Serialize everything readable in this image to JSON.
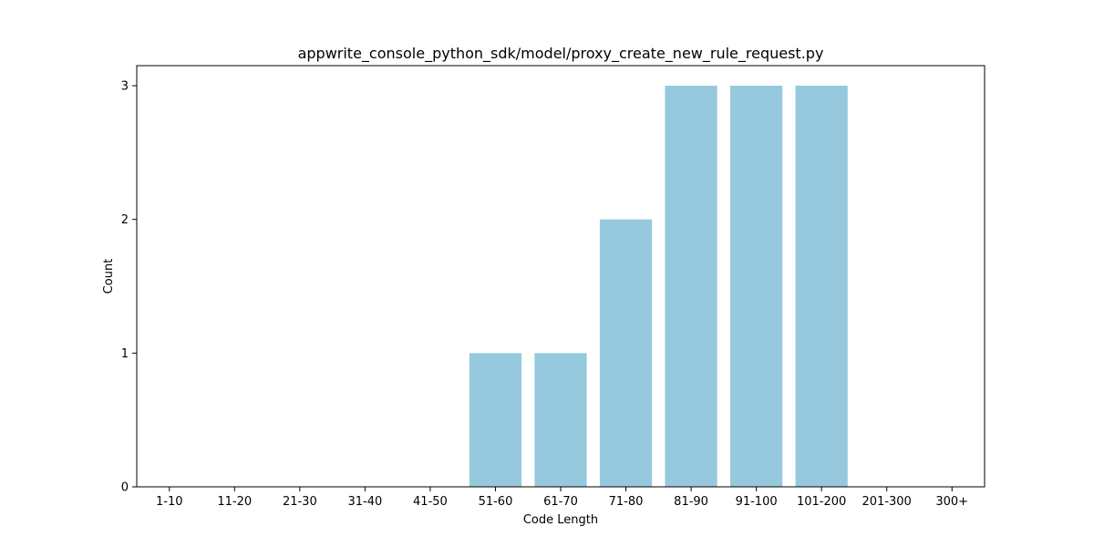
{
  "chart_data": {
    "type": "bar",
    "title": "appwrite_console_python_sdk/model/proxy_create_new_rule_request.py",
    "xlabel": "Code Length",
    "ylabel": "Count",
    "categories": [
      "1-10",
      "11-20",
      "21-30",
      "31-40",
      "41-50",
      "51-60",
      "61-70",
      "71-80",
      "81-90",
      "91-100",
      "101-200",
      "201-300",
      "300+"
    ],
    "values": [
      0,
      0,
      0,
      0,
      0,
      1,
      1,
      2,
      3,
      3,
      3,
      0,
      0
    ],
    "ylim": [
      0,
      3.15
    ],
    "yticks": [
      0,
      1,
      2,
      3
    ],
    "bar_color": "#96c9dd",
    "grid": false,
    "legend": "none"
  }
}
